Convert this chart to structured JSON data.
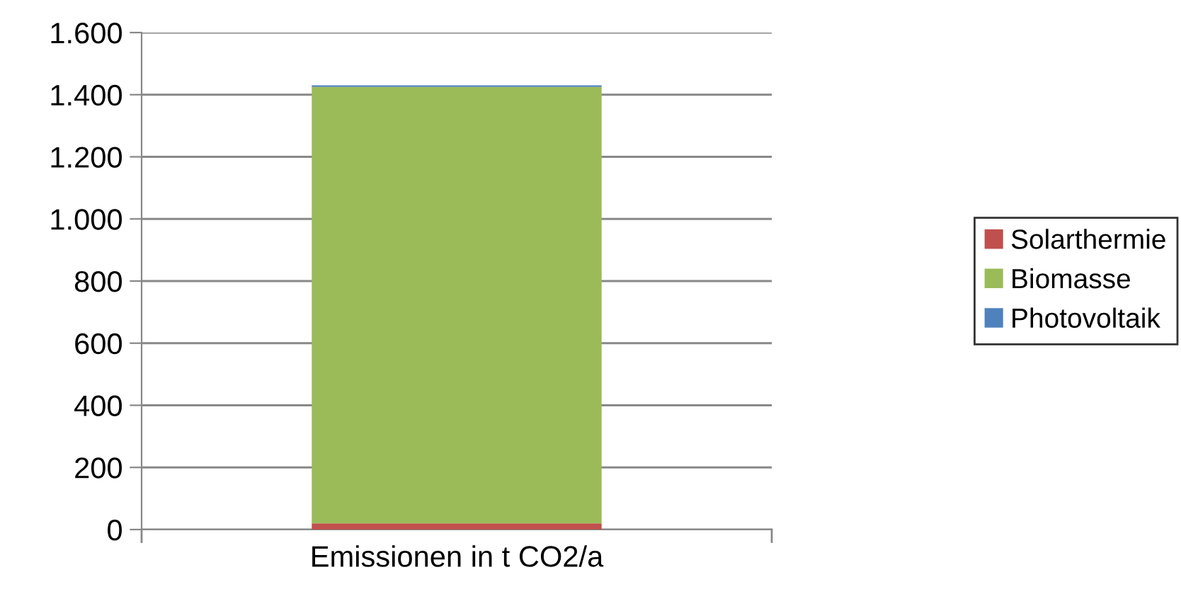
{
  "chart_data": {
    "type": "bar",
    "stacked": true,
    "categories": [
      "Emissionen in t CO2/a"
    ],
    "series": [
      {
        "name": "Solarthermie",
        "color": "#c0504d",
        "values": [
          20
        ]
      },
      {
        "name": "Biomasse",
        "color": "#9bbb59",
        "values": [
          1405
        ]
      },
      {
        "name": "Photovoltaik",
        "color": "#4f81bd",
        "values": [
          5
        ]
      }
    ],
    "ylim": [
      0,
      1600
    ],
    "yticks": [
      {
        "value": 0,
        "label": "0"
      },
      {
        "value": 200,
        "label": "200"
      },
      {
        "value": 400,
        "label": "400"
      },
      {
        "value": 600,
        "label": "600"
      },
      {
        "value": 800,
        "label": "800"
      },
      {
        "value": 1000,
        "label": "1.000"
      },
      {
        "value": 1200,
        "label": "1.200"
      },
      {
        "value": 1400,
        "label": "1.400"
      },
      {
        "value": 1600,
        "label": "1.600"
      }
    ],
    "grid": "y",
    "legend": "right"
  }
}
